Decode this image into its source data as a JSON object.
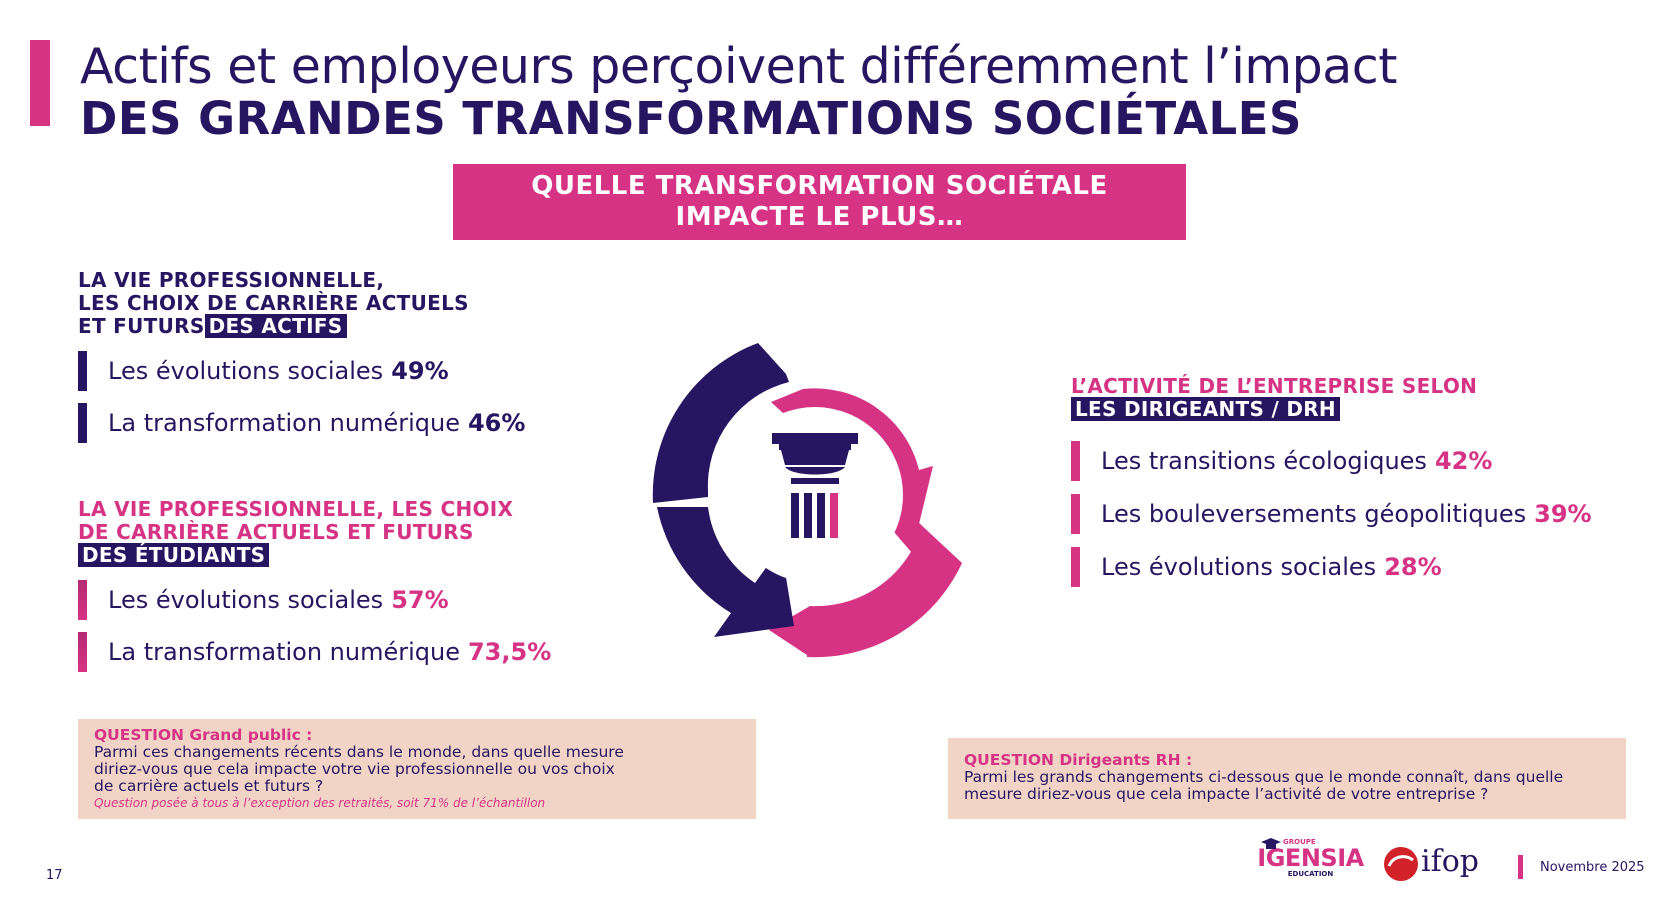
{
  "title": {
    "line1": "Actifs et employeurs perçoivent différemment l’impact",
    "line2": "DES GRANDES TRANSFORMATIONS SOCIÉTALES"
  },
  "banner": {
    "line1": "QUELLE TRANSFORMATION SOCIÉTALE",
    "line2": "IMPACTE LE PLUS…"
  },
  "actifs": {
    "heading_line1": "LA VIE PROFESSIONNELLE,",
    "heading_line2": "LES CHOIX DE CARRIÈRE ACTUELS",
    "heading_line3": "ET FUTURS",
    "heading_highlight": "DES ACTIFS",
    "items": [
      {
        "label": "Les évolutions sociales",
        "value": "49%"
      },
      {
        "label": "La transformation numérique",
        "value": "46%"
      }
    ]
  },
  "etudiants": {
    "heading_line1": "LA VIE PROFESSIONNELLE, LES CHOIX",
    "heading_line2": "DE CARRIÈRE ACTUELS ET FUTURS",
    "heading_highlight": "DES ÉTUDIANTS",
    "items": [
      {
        "label": "Les évolutions sociales",
        "value": "57%"
      },
      {
        "label": "La transformation numérique",
        "value": "73,5%"
      }
    ]
  },
  "dirigeants": {
    "heading_line1": "L’ACTIVITÉ DE L’ENTREPRISE SELON",
    "heading_highlight": "LES DIRIGEANTS / DRH",
    "items": [
      {
        "label": "Les transitions écologiques",
        "value": "42%"
      },
      {
        "label": "Les bouleversements géopolitiques",
        "value": "39%"
      },
      {
        "label": "Les évolutions sociales",
        "value": "28%"
      }
    ]
  },
  "question_public": {
    "title": "QUESTION Grand public :",
    "line1": "Parmi ces changements récents dans le monde, dans quelle mesure",
    "line2": "diriez-vous que cela impacte votre vie professionnelle ou vos choix",
    "line3": "de carrière actuels et futurs ?",
    "note": "Question posée à tous à l’exception des retraités, soit 71% de l’échantillon"
  },
  "question_dirigeants": {
    "title": "QUESTION Dirigeants RH :",
    "line1": "Parmi les grands changements ci-dessous que le monde connaît, dans quelle",
    "line2": "mesure diriez-vous que cela impacte l’activité de votre entreprise ?"
  },
  "footer": {
    "page_number": "17",
    "date": "Novembre 2025",
    "logo_igensia_top": "GROUPE",
    "logo_igensia_main": "IGENSIA",
    "logo_igensia_bottom": "EDUCATION",
    "logo_ifop": "ifop"
  },
  "colors": {
    "navy": "#261560",
    "pink": "#d63384",
    "beige": "#f2d4c6"
  }
}
